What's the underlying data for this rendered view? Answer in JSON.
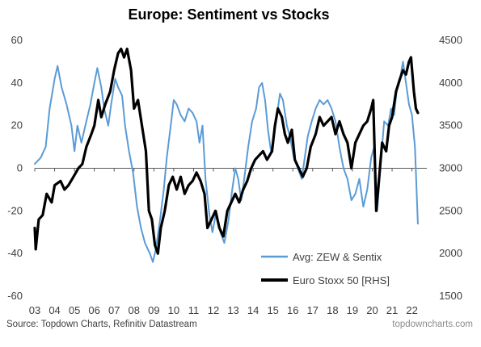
{
  "chart_data": {
    "type": "line",
    "title": "Europe: Sentiment vs Stocks",
    "x_ticks": [
      "03",
      "04",
      "05",
      "06",
      "07",
      "08",
      "09",
      "10",
      "11",
      "12",
      "13",
      "14",
      "15",
      "16",
      "17",
      "18",
      "19",
      "20",
      "21",
      "22"
    ],
    "y_left": {
      "ticks": [
        "60",
        "40",
        "20",
        "0",
        "-20",
        "-40",
        "-60"
      ],
      "ylim": [
        -60,
        60
      ]
    },
    "y_right": {
      "ticks": [
        "4500",
        "4000",
        "3500",
        "3000",
        "2500",
        "2000",
        "1500"
      ],
      "ylim": [
        1500,
        4500
      ]
    },
    "legend_placement": "bottom-right",
    "grid": false,
    "series": [
      {
        "name": "Avg: ZEW & Sentix",
        "axis": "left",
        "color": "#5b9bd5",
        "points": [
          [
            2003.0,
            2
          ],
          [
            2003.3,
            5
          ],
          [
            2003.55,
            10
          ],
          [
            2003.75,
            28
          ],
          [
            2004.0,
            42
          ],
          [
            2004.15,
            48
          ],
          [
            2004.35,
            38
          ],
          [
            2004.6,
            30
          ],
          [
            2004.85,
            20
          ],
          [
            2005.0,
            8
          ],
          [
            2005.15,
            20
          ],
          [
            2005.35,
            12
          ],
          [
            2005.6,
            22
          ],
          [
            2005.8,
            30
          ],
          [
            2006.0,
            40
          ],
          [
            2006.15,
            47
          ],
          [
            2006.35,
            38
          ],
          [
            2006.5,
            28
          ],
          [
            2006.7,
            20
          ],
          [
            2006.85,
            30
          ],
          [
            2007.05,
            42
          ],
          [
            2007.2,
            38
          ],
          [
            2007.4,
            34
          ],
          [
            2007.55,
            20
          ],
          [
            2007.75,
            8
          ],
          [
            2007.95,
            -2
          ],
          [
            2008.15,
            -18
          ],
          [
            2008.35,
            -28
          ],
          [
            2008.55,
            -35
          ],
          [
            2008.8,
            -40
          ],
          [
            2008.95,
            -44
          ],
          [
            2009.1,
            -38
          ],
          [
            2009.3,
            -25
          ],
          [
            2009.5,
            -10
          ],
          [
            2009.65,
            5
          ],
          [
            2009.85,
            20
          ],
          [
            2010.0,
            32
          ],
          [
            2010.15,
            30
          ],
          [
            2010.35,
            25
          ],
          [
            2010.55,
            22
          ],
          [
            2010.75,
            28
          ],
          [
            2010.95,
            26
          ],
          [
            2011.15,
            22
          ],
          [
            2011.3,
            12
          ],
          [
            2011.45,
            20
          ],
          [
            2011.6,
            -5
          ],
          [
            2011.8,
            -22
          ],
          [
            2011.95,
            -30
          ],
          [
            2012.15,
            -20
          ],
          [
            2012.35,
            -30
          ],
          [
            2012.55,
            -35
          ],
          [
            2012.75,
            -25
          ],
          [
            2012.95,
            -10
          ],
          [
            2013.1,
            0
          ],
          [
            2013.25,
            -5
          ],
          [
            2013.4,
            -15
          ],
          [
            2013.55,
            -5
          ],
          [
            2013.75,
            10
          ],
          [
            2013.95,
            22
          ],
          [
            2014.15,
            28
          ],
          [
            2014.3,
            38
          ],
          [
            2014.45,
            40
          ],
          [
            2014.6,
            32
          ],
          [
            2014.75,
            18
          ],
          [
            2014.9,
            8
          ],
          [
            2015.05,
            15
          ],
          [
            2015.2,
            25
          ],
          [
            2015.35,
            35
          ],
          [
            2015.5,
            32
          ],
          [
            2015.7,
            20
          ],
          [
            2015.85,
            15
          ],
          [
            2016.05,
            5
          ],
          [
            2016.25,
            0
          ],
          [
            2016.45,
            -5
          ],
          [
            2016.6,
            5
          ],
          [
            2016.75,
            15
          ],
          [
            2016.95,
            22
          ],
          [
            2017.15,
            28
          ],
          [
            2017.35,
            32
          ],
          [
            2017.55,
            30
          ],
          [
            2017.75,
            32
          ],
          [
            2017.95,
            28
          ],
          [
            2018.15,
            22
          ],
          [
            2018.35,
            10
          ],
          [
            2018.55,
            0
          ],
          [
            2018.75,
            -5
          ],
          [
            2018.95,
            -15
          ],
          [
            2019.15,
            -12
          ],
          [
            2019.35,
            -5
          ],
          [
            2019.55,
            -18
          ],
          [
            2019.75,
            -10
          ],
          [
            2019.95,
            5
          ],
          [
            2020.1,
            10
          ],
          [
            2020.25,
            -20
          ],
          [
            2020.45,
            5
          ],
          [
            2020.6,
            22
          ],
          [
            2020.8,
            20
          ],
          [
            2020.95,
            28
          ],
          [
            2021.1,
            25
          ],
          [
            2021.25,
            38
          ],
          [
            2021.4,
            42
          ],
          [
            2021.55,
            50
          ],
          [
            2021.7,
            40
          ],
          [
            2021.85,
            30
          ],
          [
            2022.0,
            25
          ],
          [
            2022.15,
            10
          ],
          [
            2022.3,
            -26
          ]
        ]
      },
      {
        "name": "Euro Stoxx 50 [RHS]",
        "axis": "right",
        "color": "#000000",
        "points": [
          [
            2003.0,
            2300
          ],
          [
            2003.05,
            2050
          ],
          [
            2003.2,
            2400
          ],
          [
            2003.4,
            2450
          ],
          [
            2003.6,
            2700
          ],
          [
            2003.85,
            2600
          ],
          [
            2004.0,
            2800
          ],
          [
            2004.3,
            2850
          ],
          [
            2004.5,
            2750
          ],
          [
            2004.7,
            2800
          ],
          [
            2004.95,
            2900
          ],
          [
            2005.2,
            3000
          ],
          [
            2005.4,
            3050
          ],
          [
            2005.6,
            3250
          ],
          [
            2005.85,
            3400
          ],
          [
            2006.0,
            3500
          ],
          [
            2006.2,
            3800
          ],
          [
            2006.35,
            3600
          ],
          [
            2006.55,
            3750
          ],
          [
            2006.8,
            3900
          ],
          [
            2007.0,
            4150
          ],
          [
            2007.2,
            4350
          ],
          [
            2007.35,
            4400
          ],
          [
            2007.5,
            4300
          ],
          [
            2007.65,
            4400
          ],
          [
            2007.85,
            4150
          ],
          [
            2008.0,
            3700
          ],
          [
            2008.2,
            3800
          ],
          [
            2008.4,
            3500
          ],
          [
            2008.6,
            3200
          ],
          [
            2008.75,
            2500
          ],
          [
            2008.9,
            2400
          ],
          [
            2009.05,
            2100
          ],
          [
            2009.2,
            2000
          ],
          [
            2009.35,
            2300
          ],
          [
            2009.55,
            2500
          ],
          [
            2009.75,
            2800
          ],
          [
            2009.95,
            2900
          ],
          [
            2010.15,
            2750
          ],
          [
            2010.35,
            2900
          ],
          [
            2010.55,
            2700
          ],
          [
            2010.75,
            2800
          ],
          [
            2010.95,
            2850
          ],
          [
            2011.15,
            2950
          ],
          [
            2011.35,
            2850
          ],
          [
            2011.55,
            2700
          ],
          [
            2011.7,
            2300
          ],
          [
            2011.9,
            2400
          ],
          [
            2012.1,
            2500
          ],
          [
            2012.3,
            2300
          ],
          [
            2012.5,
            2200
          ],
          [
            2012.7,
            2500
          ],
          [
            2012.9,
            2600
          ],
          [
            2013.1,
            2700
          ],
          [
            2013.3,
            2600
          ],
          [
            2013.5,
            2750
          ],
          [
            2013.7,
            2850
          ],
          [
            2013.9,
            3000
          ],
          [
            2014.1,
            3100
          ],
          [
            2014.3,
            3150
          ],
          [
            2014.5,
            3200
          ],
          [
            2014.7,
            3100
          ],
          [
            2014.95,
            3200
          ],
          [
            2015.1,
            3500
          ],
          [
            2015.25,
            3700
          ],
          [
            2015.45,
            3600
          ],
          [
            2015.6,
            3400
          ],
          [
            2015.75,
            3300
          ],
          [
            2015.95,
            3450
          ],
          [
            2016.1,
            3100
          ],
          [
            2016.3,
            3000
          ],
          [
            2016.5,
            2900
          ],
          [
            2016.7,
            3000
          ],
          [
            2016.9,
            3250
          ],
          [
            2017.15,
            3400
          ],
          [
            2017.35,
            3600
          ],
          [
            2017.55,
            3500
          ],
          [
            2017.75,
            3550
          ],
          [
            2017.95,
            3600
          ],
          [
            2018.15,
            3400
          ],
          [
            2018.35,
            3550
          ],
          [
            2018.55,
            3400
          ],
          [
            2018.75,
            3300
          ],
          [
            2018.95,
            3000
          ],
          [
            2019.15,
            3300
          ],
          [
            2019.35,
            3400
          ],
          [
            2019.55,
            3500
          ],
          [
            2019.75,
            3550
          ],
          [
            2019.95,
            3700
          ],
          [
            2020.05,
            3800
          ],
          [
            2020.2,
            2500
          ],
          [
            2020.35,
            2900
          ],
          [
            2020.5,
            3300
          ],
          [
            2020.7,
            3200
          ],
          [
            2020.85,
            3500
          ],
          [
            2021.0,
            3600
          ],
          [
            2021.2,
            3900
          ],
          [
            2021.4,
            4050
          ],
          [
            2021.55,
            4150
          ],
          [
            2021.7,
            4100
          ],
          [
            2021.85,
            4250
          ],
          [
            2021.95,
            4300
          ],
          [
            2022.1,
            3900
          ],
          [
            2022.2,
            3700
          ],
          [
            2022.3,
            3650
          ]
        ]
      }
    ]
  },
  "source": "Source: Topdown Charts, Refinitiv Datastream",
  "watermark": "topdowncharts.com"
}
